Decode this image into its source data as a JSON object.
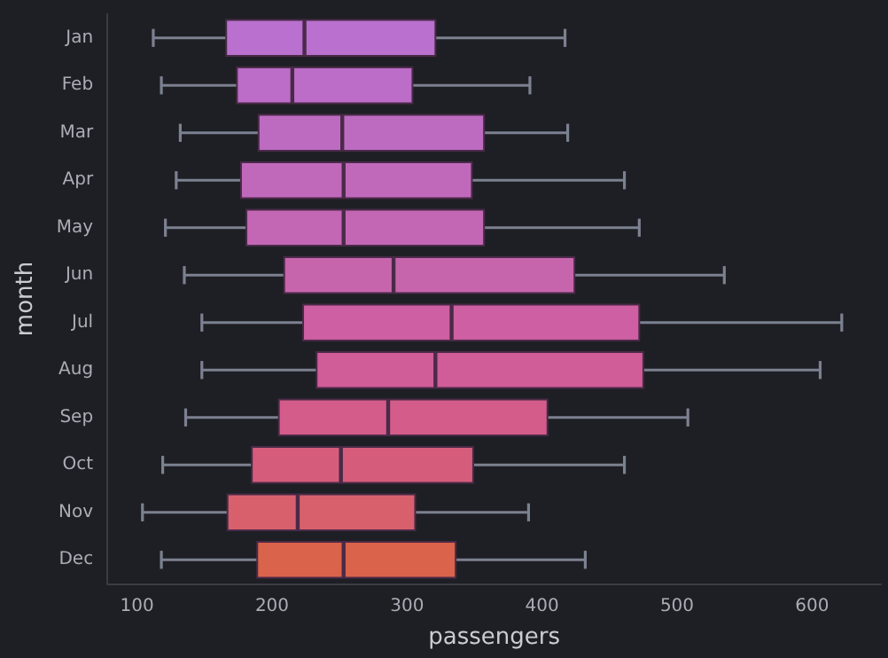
{
  "chart_data": {
    "type": "box",
    "orientation": "horizontal",
    "xlabel": "passengers",
    "ylabel": "month",
    "categories": [
      "Jan",
      "Feb",
      "Mar",
      "Apr",
      "May",
      "Jun",
      "Jul",
      "Aug",
      "Sep",
      "Oct",
      "Nov",
      "Dec"
    ],
    "boxes": [
      {
        "low": 112,
        "q1": 166,
        "median": 224,
        "q3": 321,
        "high": 417
      },
      {
        "low": 118,
        "q1": 174,
        "median": 215,
        "q3": 304,
        "high": 391
      },
      {
        "low": 132,
        "q1": 190,
        "median": 252,
        "q3": 357,
        "high": 419
      },
      {
        "low": 129,
        "q1": 177,
        "median": 253,
        "q3": 348,
        "high": 461
      },
      {
        "low": 121,
        "q1": 181,
        "median": 253,
        "q3": 357,
        "high": 472
      },
      {
        "low": 135,
        "q1": 209,
        "median": 290,
        "q3": 424,
        "high": 535
      },
      {
        "low": 148,
        "q1": 223,
        "median": 333,
        "q3": 472,
        "high": 622
      },
      {
        "low": 148,
        "q1": 233,
        "median": 321,
        "q3": 475,
        "high": 606
      },
      {
        "low": 136,
        "q1": 205,
        "median": 286,
        "q3": 404,
        "high": 508
      },
      {
        "low": 119,
        "q1": 185,
        "median": 251,
        "q3": 349,
        "high": 461
      },
      {
        "low": 104,
        "q1": 167,
        "median": 219,
        "q3": 306,
        "high": 390
      },
      {
        "low": 118,
        "q1": 189,
        "median": 253,
        "q3": 336,
        "high": 432
      }
    ],
    "colors": [
      "#b970cf",
      "#bb6dc8",
      "#bd6bc1",
      "#c069bb",
      "#c367b5",
      "#c765ac",
      "#cd5fa2",
      "#d05c98",
      "#d45c8a",
      "#d65c7b",
      "#d8606c",
      "#da634b"
    ],
    "xlim": [
      78,
      651
    ],
    "xticks": [
      100,
      200,
      300,
      400,
      500,
      600
    ],
    "grid": false
  }
}
